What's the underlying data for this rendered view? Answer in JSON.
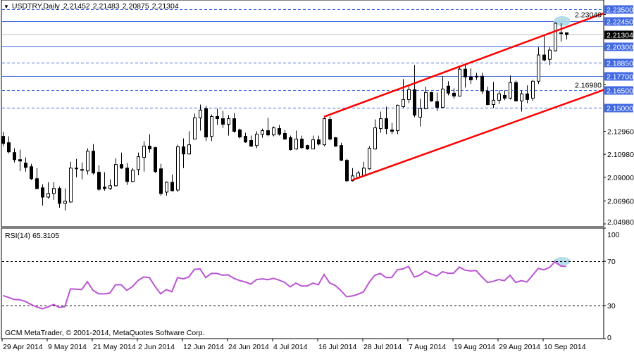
{
  "header": {
    "menu_icon": "triangle-down-icon",
    "symbol": "USDTRY,Daily",
    "open": "2.21452",
    "high": "2.21483",
    "low": "2.20875",
    "close": "2.21304"
  },
  "rsi_panel": {
    "label": "RSI(14) 65.3105",
    "axis_labels": [
      "100",
      "70",
      "30",
      "0"
    ],
    "levels": [
      70,
      30
    ]
  },
  "footer": {
    "copyright": "GCM MetaTrader, © 2001-2014, MetaQuotes Software Corp."
  },
  "colors": {
    "level_line": "#4169E1",
    "channel_line": "#FF0000",
    "rsi_line": "#BA55D3",
    "highlight": "#ADD8E6",
    "bid_line": "#C0C0C0",
    "bull_candle": "#FFFFFF",
    "bear_candle": "#000000"
  },
  "price_axis": {
    "tick_labels": [
      "2.23040",
      "2.16980",
      "2.12960",
      "2.10980",
      "2.09000",
      "2.06960",
      "2.04980"
    ],
    "current_price": "2.21304"
  },
  "levels": [
    {
      "price": 2.235,
      "style": "dashed",
      "label": "2.23500"
    },
    {
      "price": 2.2245,
      "style": "solid",
      "label": "2.22450"
    },
    {
      "price": 2.203,
      "style": "solid",
      "label": "2.20300"
    },
    {
      "price": 2.1885,
      "style": "dashed",
      "label": "2.18850"
    },
    {
      "price": 2.177,
      "style": "solid",
      "label": "2.17700"
    },
    {
      "price": 2.165,
      "style": "dashed",
      "label": "2.16500"
    },
    {
      "price": 2.15,
      "style": "dashed",
      "label": "2.15000"
    }
  ],
  "date_labels": [
    "29 Apr 2014",
    "9 May 2014",
    "21 May 2014",
    "2 Jun 2014",
    "12 Jun 2014",
    "24 Jun 2014",
    "4 Jul 2014",
    "16 Jul 2014",
    "28 Jul 2014",
    "7 Aug 2014",
    "19 Aug 2014",
    "29 Aug 2014",
    "10 Sep 2014"
  ],
  "chart_data": {
    "type": "candlestick",
    "symbol": "USDTRY",
    "timeframe": "Daily",
    "first_date": "29 Apr 2014",
    "ylim": [
      2.0474,
      2.2428
    ],
    "ohlc": [
      [
        2.1253,
        2.129,
        2.1168,
        2.1192
      ],
      [
        2.1198,
        2.1253,
        2.1107,
        2.1119
      ],
      [
        2.1113,
        2.115,
        2.1028,
        2.1052
      ],
      [
        2.1052,
        2.1138,
        2.0955,
        2.104
      ],
      [
        2.1022,
        2.1071,
        2.0949,
        2.0985
      ],
      [
        2.0991,
        2.1016,
        2.0876,
        2.0888
      ],
      [
        2.0888,
        2.0979,
        2.0796,
        2.0803
      ],
      [
        2.0809,
        2.0839,
        2.0656,
        2.0729
      ],
      [
        2.0729,
        2.0857,
        2.0717,
        2.076
      ],
      [
        2.076,
        2.0857,
        2.0705,
        2.0803
      ],
      [
        2.0803,
        2.0821,
        2.0638,
        2.0675
      ],
      [
        2.0675,
        2.0803,
        2.0614,
        2.0693
      ],
      [
        2.0687,
        2.1034,
        2.0681,
        2.0979
      ],
      [
        2.0979,
        2.1058,
        2.09,
        2.0973
      ],
      [
        2.0967,
        2.1028,
        2.0882,
        2.0961
      ],
      [
        2.0955,
        2.115,
        2.0924,
        2.1125
      ],
      [
        2.1125,
        2.1186,
        2.0924,
        2.0937
      ],
      [
        2.0943,
        2.1004,
        2.0784,
        2.0796
      ],
      [
        2.0815,
        2.0943,
        2.0784,
        2.0803
      ],
      [
        2.0803,
        2.0882,
        2.079,
        2.0827
      ],
      [
        2.0827,
        2.1064,
        2.0821,
        2.101
      ],
      [
        2.101,
        2.1113,
        2.0973,
        2.0979
      ],
      [
        2.0979,
        2.1022,
        2.0833,
        2.0863
      ],
      [
        2.0863,
        2.0979,
        2.0857,
        2.0961
      ],
      [
        2.0967,
        2.1113,
        2.0918,
        2.1077
      ],
      [
        2.1071,
        2.1211,
        2.0949,
        2.1168
      ],
      [
        2.1168,
        2.1271,
        2.1113,
        2.1144
      ],
      [
        2.1156,
        2.1162,
        2.0937,
        2.0949
      ],
      [
        2.0973,
        2.1016,
        2.0742,
        2.076
      ],
      [
        2.0772,
        2.0863,
        2.0742,
        2.0857
      ],
      [
        2.0857,
        2.0924,
        2.0778,
        2.0784
      ],
      [
        2.079,
        2.118,
        2.0772,
        2.1162
      ],
      [
        2.1162,
        2.1235,
        2.0979,
        2.1101
      ],
      [
        2.1101,
        2.1296,
        2.1095,
        2.118
      ],
      [
        2.1229,
        2.1448,
        2.1229,
        2.1412
      ],
      [
        2.1412,
        2.1527,
        2.1302,
        2.1479
      ],
      [
        2.1491,
        2.1515,
        2.1211,
        2.1247
      ],
      [
        2.1253,
        2.1442,
        2.1211,
        2.1424
      ],
      [
        2.1424,
        2.1491,
        2.1351,
        2.1405
      ],
      [
        2.1405,
        2.1472,
        2.1326,
        2.1357
      ],
      [
        2.1357,
        2.1436,
        2.1259,
        2.1405
      ],
      [
        2.1405,
        2.1454,
        2.1284,
        2.1296
      ],
      [
        2.1308,
        2.132,
        2.1235,
        2.1247
      ],
      [
        2.1253,
        2.1284,
        2.1198,
        2.1204
      ],
      [
        2.1217,
        2.1259,
        2.1162,
        2.1168
      ],
      [
        2.1174,
        2.1296,
        2.115,
        2.1271
      ],
      [
        2.1271,
        2.132,
        2.1241,
        2.1302
      ],
      [
        2.1302,
        2.1412,
        2.1253,
        2.1265
      ],
      [
        2.1265,
        2.1338,
        2.1253,
        2.1326
      ],
      [
        2.132,
        2.1351,
        2.1259,
        2.1271
      ],
      [
        2.1278,
        2.1308,
        2.1223,
        2.1229
      ],
      [
        2.1241,
        2.1259,
        2.1131,
        2.1138
      ],
      [
        2.1144,
        2.1302,
        2.1138,
        2.1229
      ],
      [
        2.1229,
        2.1259,
        2.1144,
        2.1156
      ],
      [
        2.1174,
        2.118,
        2.1138,
        2.1144
      ],
      [
        2.1144,
        2.1259,
        2.1144,
        2.1223
      ],
      [
        2.1223,
        2.1259,
        2.1174,
        2.1186
      ],
      [
        2.118,
        2.1418,
        2.1168,
        2.1405
      ],
      [
        2.1399,
        2.1424,
        2.1217,
        2.1229
      ],
      [
        2.1241,
        2.1247,
        2.1162,
        2.1168
      ],
      [
        2.1174,
        2.1198,
        2.104,
        2.1046
      ],
      [
        2.1046,
        2.1058,
        2.0857,
        2.087
      ],
      [
        2.087,
        2.0979,
        2.0863,
        2.0912
      ],
      [
        2.09,
        2.0955,
        2.0888,
        2.0937
      ],
      [
        2.0912,
        2.1034,
        2.0906,
        2.0979
      ],
      [
        2.0973,
        2.1168,
        2.0967,
        2.115
      ],
      [
        2.1144,
        2.1399,
        2.1138,
        2.1326
      ],
      [
        2.132,
        2.1466,
        2.1284,
        2.1405
      ],
      [
        2.1405,
        2.1509,
        2.1271,
        2.132
      ],
      [
        2.1308,
        2.1369,
        2.1271,
        2.1296
      ],
      [
        2.1302,
        2.1527,
        2.1271,
        2.1521
      ],
      [
        2.1509,
        2.1747,
        2.1497,
        2.157
      ],
      [
        2.157,
        2.1698,
        2.1539,
        2.1655
      ],
      [
        2.1655,
        2.1868,
        2.1418,
        2.1436
      ],
      [
        2.1418,
        2.1576,
        2.1338,
        2.1491
      ],
      [
        2.1491,
        2.168,
        2.1485,
        2.1631
      ],
      [
        2.1631,
        2.1637,
        2.1552,
        2.1558
      ],
      [
        2.1552,
        2.1631,
        2.1472,
        2.1503
      ],
      [
        2.1503,
        2.1771,
        2.1497,
        2.1661
      ],
      [
        2.1686,
        2.1728,
        2.1606,
        2.1625
      ],
      [
        2.1625,
        2.1667,
        2.1576,
        2.16
      ],
      [
        2.16,
        2.1856,
        2.1594,
        2.1832
      ],
      [
        2.1832,
        2.1868,
        2.1673,
        2.1765
      ],
      [
        2.1765,
        2.1838,
        2.1704,
        2.174
      ],
      [
        2.1771,
        2.1801,
        2.174,
        2.1765
      ],
      [
        2.1771,
        2.1801,
        2.1619,
        2.1643
      ],
      [
        2.1643,
        2.168,
        2.1521,
        2.1527
      ],
      [
        2.1527,
        2.1722,
        2.1497,
        2.1564
      ],
      [
        2.1564,
        2.1649,
        2.1533,
        2.1619
      ],
      [
        2.1606,
        2.1649,
        2.1564,
        2.1582
      ],
      [
        2.1582,
        2.1777,
        2.157,
        2.1716
      ],
      [
        2.1716,
        2.1734,
        2.1552,
        2.1558
      ],
      [
        2.1558,
        2.1649,
        2.1466,
        2.1619
      ],
      [
        2.1619,
        2.1692,
        2.1539,
        2.157
      ],
      [
        2.1582,
        2.174,
        2.1558,
        2.1728
      ],
      [
        2.1728,
        2.2021,
        2.1704,
        2.1954
      ],
      [
        2.1954,
        2.2124,
        2.1899,
        2.1911
      ],
      [
        2.1917,
        2.2021,
        2.1868,
        2.1996
      ],
      [
        2.199,
        2.2234,
        2.1984,
        2.2228
      ],
      [
        2.2145,
        2.2228,
        2.2069,
        2.2142
      ],
      [
        2.21452,
        2.21483,
        2.20875,
        2.21304
      ]
    ],
    "rsi": {
      "period": 14,
      "ylim": [
        0,
        100
      ],
      "values": [
        39.0,
        37.3,
        35.4,
        35.2,
        33.6,
        30.9,
        28.7,
        27.0,
        28.7,
        30.9,
        28.3,
        28.9,
        45.0,
        44.8,
        44.4,
        51.5,
        43.7,
        40.5,
        40.5,
        41.2,
        48.7,
        48.7,
        43.7,
        47.1,
        52.6,
        55.8,
        55.2,
        47.3,
        40.5,
        44.4,
        42.4,
        55.2,
        54.1,
        55.8,
        62.7,
        63.1,
        55.2,
        59.0,
        59.0,
        57.3,
        57.7,
        54.5,
        52.6,
        51.3,
        49.3,
        53.4,
        54.1,
        53.3,
        54.5,
        53.0,
        50.9,
        46.8,
        50.2,
        47.6,
        47.6,
        50.2,
        48.7,
        58.0,
        50.4,
        48.1,
        43.4,
        37.9,
        38.6,
        40.1,
        42.3,
        50.8,
        57.3,
        59.0,
        55.2,
        55.2,
        62.3,
        63.1,
        65.3,
        55.8,
        57.3,
        61.0,
        58.4,
        56.6,
        60.5,
        59.2,
        59.2,
        64.8,
        62.0,
        61.2,
        61.6,
        55.8,
        50.8,
        51.8,
        53.5,
        52.4,
        57.3,
        50.8,
        52.4,
        51.3,
        57.3,
        63.5,
        62.3,
        64.4,
        69.6,
        65.7,
        65.3105
      ]
    },
    "trendlines": [
      {
        "from": {
          "date": "17 Jul 2014",
          "price": 2.1422
        },
        "to": {
          "date": "10 Sep 2014",
          "price": 2.2123
        },
        "ray": true
      },
      {
        "from": {
          "date": "24 Jul 2014",
          "price": 2.0876
        },
        "to": {
          "date": "10 Sep 2014",
          "price": 2.1468
        },
        "ray": true
      }
    ],
    "highlights": [
      {
        "panel": "price",
        "date": "15 Sep 2014",
        "price": 2.2246
      },
      {
        "panel": "rsi",
        "date": "15 Sep 2014",
        "value": 70
      }
    ]
  }
}
